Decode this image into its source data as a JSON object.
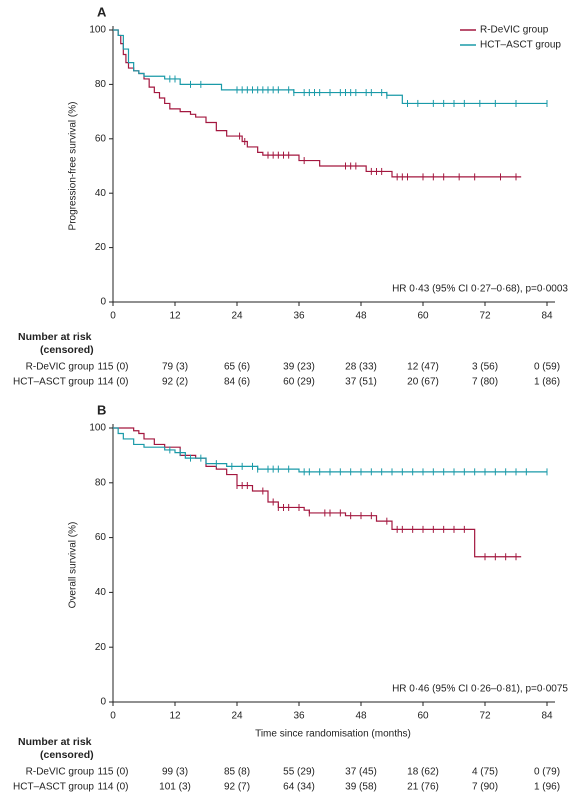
{
  "chart_data": [
    {
      "type": "line",
      "label": "A",
      "y_label": "Progression-free survival (%)",
      "annotation": "HR 0·43 (95% CI 0·27–0·68), p=0·0003",
      "xlim": [
        0,
        84
      ],
      "ylim": [
        0,
        100
      ],
      "xticks": [
        0,
        12,
        24,
        36,
        48,
        60,
        72,
        84
      ],
      "yticks": [
        0,
        20,
        40,
        60,
        80,
        100
      ],
      "legend": "upper right",
      "series": [
        {
          "name": "R-DeVIC group",
          "color": "#a3173f",
          "x": [
            0,
            1,
            1.5,
            2,
            2.5,
            3,
            4,
            5,
            6,
            7,
            8,
            9,
            10,
            11,
            13,
            15,
            16,
            18,
            20,
            22,
            25,
            26,
            28,
            29,
            36,
            40,
            49,
            54,
            79
          ],
          "values": [
            100,
            98,
            95,
            91,
            88,
            86,
            85,
            84,
            82,
            79,
            77,
            75,
            73,
            71,
            70,
            69,
            68,
            66,
            63,
            61,
            59,
            57,
            55,
            54,
            52,
            50,
            48,
            46,
            46
          ],
          "censored_x": [
            24.5,
            25.5,
            30,
            31,
            32,
            33,
            34,
            37,
            45,
            46,
            47,
            50,
            51,
            52,
            55,
            56,
            57,
            60,
            62,
            64,
            67,
            70,
            75,
            78
          ]
        },
        {
          "name": "HCT–ASCT group",
          "color": "#1a9aa8",
          "x": [
            0,
            1,
            2,
            3,
            4,
            5,
            6,
            10,
            13,
            21,
            35,
            53,
            56,
            84
          ],
          "values": [
            100,
            98,
            93,
            88,
            85,
            84,
            83,
            82,
            80,
            78,
            77,
            76,
            73,
            73
          ],
          "censored_x": [
            11,
            12,
            15,
            17,
            24,
            25,
            26,
            27,
            28,
            29,
            30,
            31,
            32,
            34,
            35,
            37,
            38,
            39,
            40,
            42,
            44,
            45,
            46,
            47,
            49,
            50,
            52,
            53,
            57,
            59,
            62,
            64,
            66,
            68,
            71,
            74,
            78,
            84
          ]
        }
      ],
      "risk_table": {
        "title": [
          "Number at risk",
          "(censored)"
        ],
        "rows": [
          {
            "label": "R-DeVIC group",
            "values": [
              "115 (0)",
              "79 (3)",
              "65 (6)",
              "39 (23)",
              "28 (33)",
              "12 (47)",
              "3 (56)",
              "0 (59)"
            ]
          },
          {
            "label": "HCT–ASCT group",
            "values": [
              "114 (0)",
              "92 (2)",
              "84 (6)",
              "60 (29)",
              "37 (51)",
              "20 (67)",
              "7 (80)",
              "1 (86)"
            ]
          }
        ]
      }
    },
    {
      "type": "line",
      "label": "B",
      "y_label": "Overall survival (%)",
      "x_label": "Time since randomisation (months)",
      "annotation": "HR 0·46 (95% CI 0·26–0·81), p=0·0075",
      "xlim": [
        0,
        84
      ],
      "ylim": [
        0,
        100
      ],
      "xticks": [
        0,
        12,
        24,
        36,
        48,
        60,
        72,
        84
      ],
      "yticks": [
        0,
        20,
        40,
        60,
        80,
        100
      ],
      "series": [
        {
          "color": "#a3173f",
          "x": [
            0,
            4,
            5,
            6,
            8,
            10,
            13,
            16,
            18,
            20,
            22,
            24,
            27,
            30,
            32,
            37,
            38,
            45,
            51,
            54,
            70,
            79
          ],
          "values": [
            100,
            99,
            98,
            96,
            94,
            93,
            90,
            89,
            86,
            85,
            83,
            79,
            77,
            73,
            71,
            70,
            69,
            68,
            66,
            63,
            53,
            53
          ],
          "censored_x": [
            24,
            25,
            26,
            29,
            31,
            32,
            33,
            34,
            36,
            38,
            41,
            42,
            44,
            46,
            48,
            50,
            53,
            55,
            56,
            58,
            60,
            62,
            64,
            66,
            68,
            72,
            74,
            76,
            78
          ]
        },
        {
          "color": "#1a9aa8",
          "x": [
            0,
            1,
            2,
            4,
            6,
            10,
            12,
            14,
            18,
            22,
            28,
            36,
            84
          ],
          "values": [
            100,
            98,
            96,
            94,
            93,
            92,
            91,
            89,
            87,
            86,
            85,
            84,
            84
          ],
          "censored_x": [
            11,
            13,
            15,
            17,
            20,
            23,
            25,
            27,
            28,
            30,
            31,
            32,
            34,
            37,
            38,
            40,
            42,
            44,
            46,
            48,
            50,
            52,
            54,
            56,
            58,
            60,
            62,
            64,
            66,
            68,
            70,
            72,
            74,
            76,
            78,
            80,
            84
          ]
        }
      ],
      "risk_table": {
        "title": [
          "Number at risk",
          "(censored)"
        ],
        "rows": [
          {
            "label": "R-DeVIC group",
            "values": [
              "115 (0)",
              "99 (3)",
              "85 (8)",
              "55 (29)",
              "37 (45)",
              "18 (62)",
              "4 (75)",
              "0 (79)"
            ]
          },
          {
            "label": "HCT–ASCT group",
            "values": [
              "114 (0)",
              "101 (3)",
              "92 (7)",
              "64 (34)",
              "39 (58)",
              "21 (76)",
              "7 (90)",
              "1 (96)"
            ]
          }
        ]
      }
    }
  ]
}
